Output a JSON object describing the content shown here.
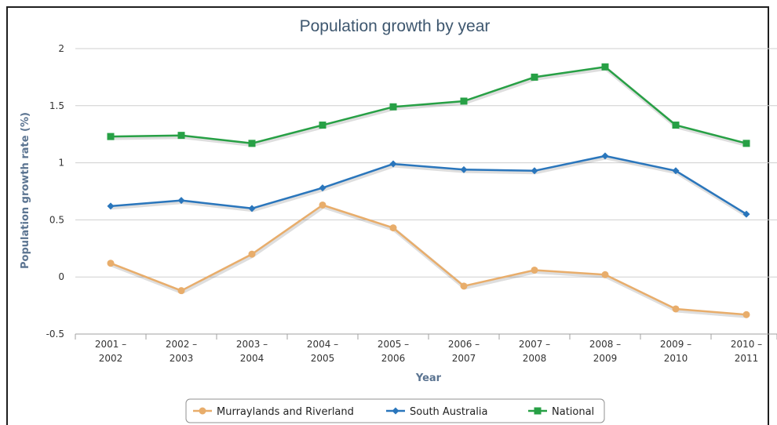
{
  "chart_data": {
    "type": "line",
    "title": "Population growth by year",
    "xlabel": "Year",
    "ylabel": "Population growth rate (%)",
    "ylim": [
      -0.5,
      2
    ],
    "yticks": [
      "-0.5",
      "0",
      "0.5",
      "1",
      "1.5",
      "2"
    ],
    "grid": "horizontal",
    "legend_position": "bottom",
    "categories": [
      [
        "2001 –",
        "2002"
      ],
      [
        "2002 –",
        "2003"
      ],
      [
        "2003 –",
        "2004"
      ],
      [
        "2004 –",
        "2005"
      ],
      [
        "2005 –",
        "2006"
      ],
      [
        "2006 –",
        "2007"
      ],
      [
        "2007 –",
        "2008"
      ],
      [
        "2008 –",
        "2009"
      ],
      [
        "2009 –",
        "2010"
      ],
      [
        "2010 –",
        "2011"
      ]
    ],
    "series": [
      {
        "name": "Murraylands and Riverland",
        "color": "#e8ad6b",
        "marker": "circle",
        "values": [
          0.12,
          -0.12,
          0.2,
          0.63,
          0.43,
          -0.08,
          0.06,
          0.02,
          -0.28,
          -0.33
        ]
      },
      {
        "name": "South Australia",
        "color": "#2a76bc",
        "marker": "diamond",
        "values": [
          0.62,
          0.67,
          0.6,
          0.78,
          0.99,
          0.94,
          0.93,
          1.06,
          0.93,
          0.55
        ]
      },
      {
        "name": "National",
        "color": "#27a045",
        "marker": "square",
        "values": [
          1.23,
          1.24,
          1.17,
          1.33,
          1.49,
          1.54,
          1.75,
          1.84,
          1.33,
          1.17
        ]
      }
    ]
  }
}
